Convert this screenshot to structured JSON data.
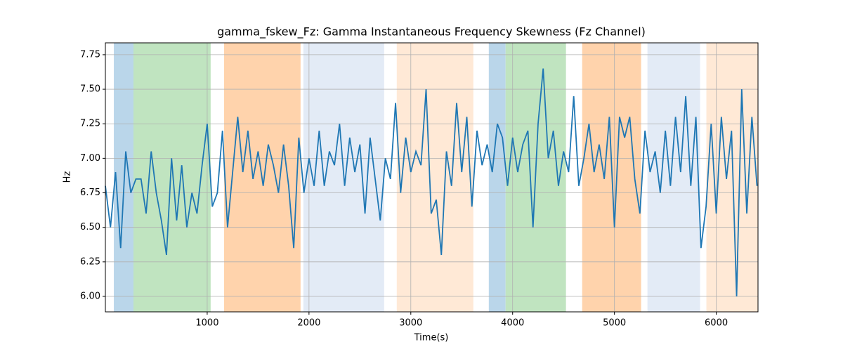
{
  "chart_data": {
    "type": "line",
    "title": "gamma_fskew_Fz: Gamma Instantaneous Frequency Skewness (Fz Channel)",
    "xlabel": "Time(s)",
    "ylabel": "Hz",
    "xlim": [
      0,
      6410
    ],
    "ylim": [
      5.888,
      7.836
    ],
    "xticks": [
      1000,
      2000,
      3000,
      4000,
      5000,
      6000
    ],
    "yticks": [
      {
        "value": 6.0,
        "label": "6.00"
      },
      6.25,
      {
        "value": 6.5,
        "label": "6.50"
      },
      6.75,
      {
        "value": 7.0,
        "label": "7.00"
      },
      7.25,
      {
        "value": 7.5,
        "label": "7.50"
      },
      7.75
    ],
    "grid": true,
    "spans": [
      {
        "start": 83,
        "end": 276,
        "color": "#bad6ea"
      },
      {
        "start": 276,
        "end": 1034,
        "color": "#c0e4c0"
      },
      {
        "start": 1166,
        "end": 1917,
        "color": "#ffd3ac"
      },
      {
        "start": 1945,
        "end": 2738,
        "color": "#e3ebf6"
      },
      {
        "start": 2862,
        "end": 3614,
        "color": "#ffe9d6"
      },
      {
        "start": 3766,
        "end": 3931,
        "color": "#bad6ea"
      },
      {
        "start": 3931,
        "end": 4524,
        "color": "#c0e4c0"
      },
      {
        "start": 4683,
        "end": 5262,
        "color": "#ffd3ac"
      },
      {
        "start": 5324,
        "end": 5841,
        "color": "#e3ebf6"
      },
      {
        "start": 5903,
        "end": 6410,
        "color": "#ffe9d6"
      }
    ],
    "x": [
      0,
      50,
      100,
      150,
      200,
      250,
      300,
      350,
      400,
      450,
      500,
      550,
      600,
      650,
      700,
      750,
      800,
      850,
      900,
      950,
      1000,
      1050,
      1100,
      1150,
      1200,
      1250,
      1300,
      1350,
      1400,
      1450,
      1500,
      1550,
      1600,
      1650,
      1700,
      1750,
      1800,
      1850,
      1900,
      1950,
      2000,
      2050,
      2100,
      2150,
      2200,
      2250,
      2300,
      2350,
      2400,
      2450,
      2500,
      2550,
      2600,
      2650,
      2700,
      2750,
      2800,
      2850,
      2900,
      2950,
      3000,
      3050,
      3100,
      3150,
      3200,
      3250,
      3300,
      3350,
      3400,
      3450,
      3500,
      3550,
      3600,
      3650,
      3700,
      3750,
      3800,
      3850,
      3900,
      3950,
      4000,
      4050,
      4100,
      4150,
      4200,
      4250,
      4300,
      4350,
      4400,
      4450,
      4500,
      4550,
      4600,
      4650,
      4700,
      4750,
      4800,
      4850,
      4900,
      4950,
      5000,
      5050,
      5100,
      5150,
      5200,
      5250,
      5300,
      5350,
      5400,
      5450,
      5500,
      5550,
      5600,
      5650,
      5700,
      5750,
      5800,
      5850,
      5900,
      5950,
      6000,
      6050,
      6100,
      6150,
      6200,
      6250,
      6300,
      6350,
      6400
    ],
    "series": [
      {
        "color": "#1f77b4",
        "values": [
          6.8,
          6.5,
          6.9,
          6.35,
          7.05,
          6.75,
          6.85,
          6.85,
          6.6,
          7.05,
          6.75,
          6.55,
          6.3,
          7.0,
          6.55,
          6.95,
          6.5,
          6.75,
          6.6,
          6.95,
          7.25,
          6.65,
          6.75,
          7.2,
          6.5,
          6.9,
          7.3,
          6.9,
          7.2,
          6.85,
          7.05,
          6.8,
          7.1,
          6.95,
          6.75,
          7.1,
          6.8,
          6.35,
          7.15,
          6.75,
          7.0,
          6.8,
          7.2,
          6.8,
          7.05,
          6.95,
          7.25,
          6.8,
          7.15,
          6.9,
          7.1,
          6.6,
          7.15,
          6.85,
          6.55,
          7.0,
          6.85,
          7.4,
          6.75,
          7.15,
          6.9,
          7.05,
          6.95,
          7.5,
          6.6,
          6.7,
          6.3,
          7.05,
          6.8,
          7.4,
          6.9,
          7.3,
          6.65,
          7.2,
          6.95,
          7.1,
          6.9,
          7.25,
          7.15,
          6.8,
          7.15,
          6.9,
          7.1,
          7.2,
          6.5,
          7.25,
          7.65,
          7.0,
          7.2,
          6.8,
          7.05,
          6.9,
          7.45,
          6.8,
          7.0,
          7.25,
          6.9,
          7.1,
          6.85,
          7.3,
          6.5,
          7.3,
          7.15,
          7.3,
          6.85,
          6.6,
          7.2,
          6.9,
          7.05,
          6.75,
          7.2,
          6.8,
          7.3,
          6.9,
          7.45,
          6.8,
          7.3,
          6.35,
          6.65,
          7.25,
          6.6,
          7.3,
          6.85,
          7.2,
          6.0,
          7.5,
          6.6,
          7.3,
          6.8
        ]
      }
    ]
  }
}
